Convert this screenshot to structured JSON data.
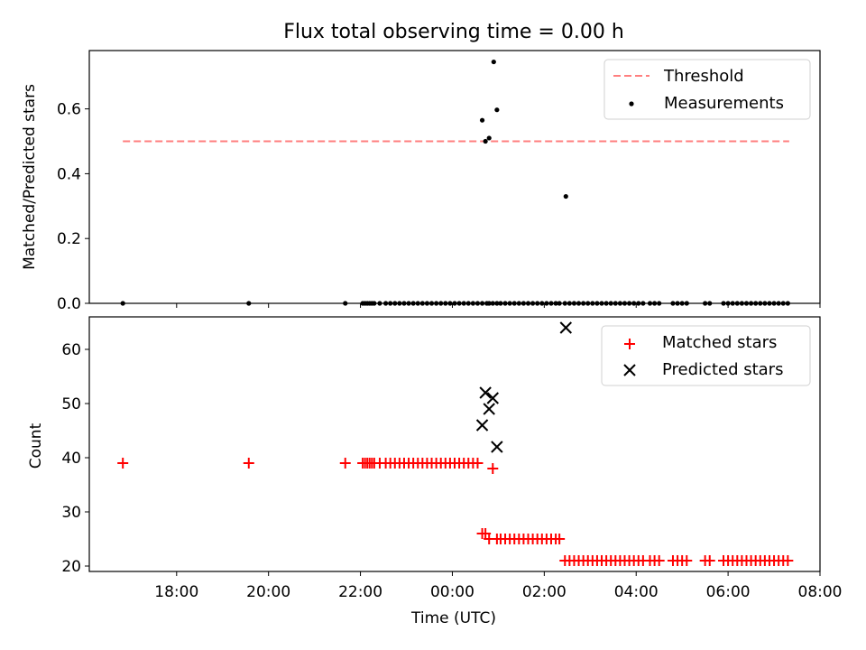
{
  "figure": {
    "title": "Flux total observing time = 0.00 h"
  },
  "chart_data": [
    {
      "type": "scatter",
      "position": "top",
      "ylabel": "Matched/Predicted stars",
      "xlabel": "",
      "xlim_hours": [
        16.1,
        32.0
      ],
      "ylim": [
        0,
        0.78
      ],
      "yticks": [
        0.0,
        0.2,
        0.4,
        0.6
      ],
      "ytick_labels": [
        "0.0",
        "0.2",
        "0.4",
        "0.6"
      ],
      "grid": false,
      "legend_position": "top-right",
      "threshold": {
        "name": "Threshold",
        "value": 0.5,
        "x_range_hours": [
          16.83,
          31.33
        ],
        "color": "#ff7f7f"
      },
      "series": [
        {
          "name": "Measurements",
          "color": "#000000",
          "marker": "dot",
          "x_hours": [
            16.83,
            19.57,
            21.67,
            22.05,
            22.1,
            22.15,
            22.2,
            22.25,
            22.3,
            22.42,
            22.55,
            22.65,
            22.75,
            22.85,
            22.95,
            23.05,
            23.15,
            23.25,
            23.35,
            23.45,
            23.55,
            23.65,
            23.75,
            23.85,
            23.95,
            24.05,
            24.15,
            24.25,
            24.35,
            24.45,
            24.55,
            24.65,
            24.75,
            24.8,
            24.88,
            24.97,
            25.05,
            25.15,
            25.25,
            25.35,
            25.45,
            25.55,
            25.65,
            25.75,
            25.85,
            25.95,
            26.05,
            26.15,
            26.25,
            26.33,
            26.45,
            26.55,
            26.65,
            26.75,
            26.85,
            26.95,
            27.05,
            27.15,
            27.25,
            27.35,
            27.45,
            27.55,
            27.65,
            27.75,
            27.85,
            27.95,
            28.05,
            28.15,
            28.3,
            28.4,
            28.5,
            28.8,
            28.9,
            29.0,
            29.1,
            29.5,
            29.6,
            29.9,
            30.0,
            30.1,
            30.2,
            30.3,
            30.4,
            30.5,
            30.6,
            30.7,
            30.8,
            30.9,
            31.0,
            31.1,
            31.2,
            31.3,
            24.65,
            24.72,
            24.8,
            24.9,
            24.97,
            26.47
          ],
          "y": [
            0,
            0,
            0,
            0,
            0,
            0,
            0,
            0,
            0,
            0,
            0,
            0,
            0,
            0,
            0,
            0,
            0,
            0,
            0,
            0,
            0,
            0,
            0,
            0,
            0,
            0,
            0,
            0,
            0,
            0,
            0,
            0,
            0,
            0,
            0,
            0,
            0,
            0,
            0,
            0,
            0,
            0,
            0,
            0,
            0,
            0,
            0,
            0,
            0,
            0,
            0,
            0,
            0,
            0,
            0,
            0,
            0,
            0,
            0,
            0,
            0,
            0,
            0,
            0,
            0,
            0,
            0,
            0,
            0,
            0,
            0,
            0,
            0,
            0,
            0,
            0,
            0,
            0,
            0,
            0,
            0,
            0,
            0,
            0,
            0,
            0,
            0,
            0,
            0,
            0,
            0,
            0,
            0.565,
            0.5,
            0.51,
            0.745,
            0.597,
            0.33
          ]
        }
      ]
    },
    {
      "type": "scatter",
      "position": "bottom",
      "ylabel": "Count",
      "xlabel": "Time (UTC)",
      "xlim_hours": [
        16.1,
        32.0
      ],
      "ylim": [
        19,
        66
      ],
      "yticks": [
        20,
        30,
        40,
        50,
        60
      ],
      "ytick_labels": [
        "20",
        "30",
        "40",
        "50",
        "60"
      ],
      "xticks_hours": [
        18,
        20,
        22,
        24,
        26,
        28,
        30,
        32
      ],
      "xtick_labels": [
        "18:00",
        "20:00",
        "22:00",
        "00:00",
        "02:00",
        "04:00",
        "06:00",
        "08:00"
      ],
      "grid": false,
      "legend_position": "top-right",
      "series": [
        {
          "name": "Matched stars",
          "color": "#ff0000",
          "marker": "plus",
          "x_hours": [
            16.83,
            19.57,
            21.67,
            22.05,
            22.1,
            22.15,
            22.2,
            22.25,
            22.3,
            22.42,
            22.55,
            22.65,
            22.75,
            22.85,
            22.95,
            23.05,
            23.15,
            23.25,
            23.35,
            23.45,
            23.55,
            23.65,
            23.75,
            23.85,
            23.95,
            24.05,
            24.15,
            24.25,
            24.35,
            24.45,
            24.55,
            24.88,
            24.65,
            24.72,
            24.8,
            24.97,
            25.05,
            25.15,
            25.25,
            25.35,
            25.45,
            25.55,
            25.65,
            25.75,
            25.85,
            25.95,
            26.05,
            26.15,
            26.25,
            26.33,
            26.45,
            26.55,
            26.65,
            26.75,
            26.85,
            26.95,
            27.05,
            27.15,
            27.25,
            27.35,
            27.45,
            27.55,
            27.65,
            27.75,
            27.85,
            27.95,
            28.05,
            28.15,
            28.3,
            28.4,
            28.5,
            28.8,
            28.9,
            29.0,
            29.1,
            29.5,
            29.6,
            29.9,
            30.0,
            30.1,
            30.2,
            30.3,
            30.4,
            30.5,
            30.6,
            30.7,
            30.8,
            30.9,
            31.0,
            31.1,
            31.2,
            31.3
          ],
          "y": [
            39,
            39,
            39,
            39,
            39,
            39,
            39,
            39,
            39,
            39,
            39,
            39,
            39,
            39,
            39,
            39,
            39,
            39,
            39,
            39,
            39,
            39,
            39,
            39,
            39,
            39,
            39,
            39,
            39,
            39,
            39,
            38,
            26,
            26,
            25,
            25,
            25,
            25,
            25,
            25,
            25,
            25,
            25,
            25,
            25,
            25,
            25,
            25,
            25,
            25,
            21,
            21,
            21,
            21,
            21,
            21,
            21,
            21,
            21,
            21,
            21,
            21,
            21,
            21,
            21,
            21,
            21,
            21,
            21,
            21,
            21,
            21,
            21,
            21,
            21,
            21,
            21,
            21,
            21,
            21,
            21,
            21,
            21,
            21,
            21,
            21,
            21,
            21,
            21,
            21,
            21,
            21
          ]
        },
        {
          "name": "Predicted stars",
          "color": "#000000",
          "marker": "cross",
          "x_hours": [
            24.65,
            24.72,
            24.8,
            24.88,
            24.97,
            26.47
          ],
          "y": [
            46,
            52,
            49,
            51,
            42,
            64
          ]
        }
      ]
    }
  ]
}
